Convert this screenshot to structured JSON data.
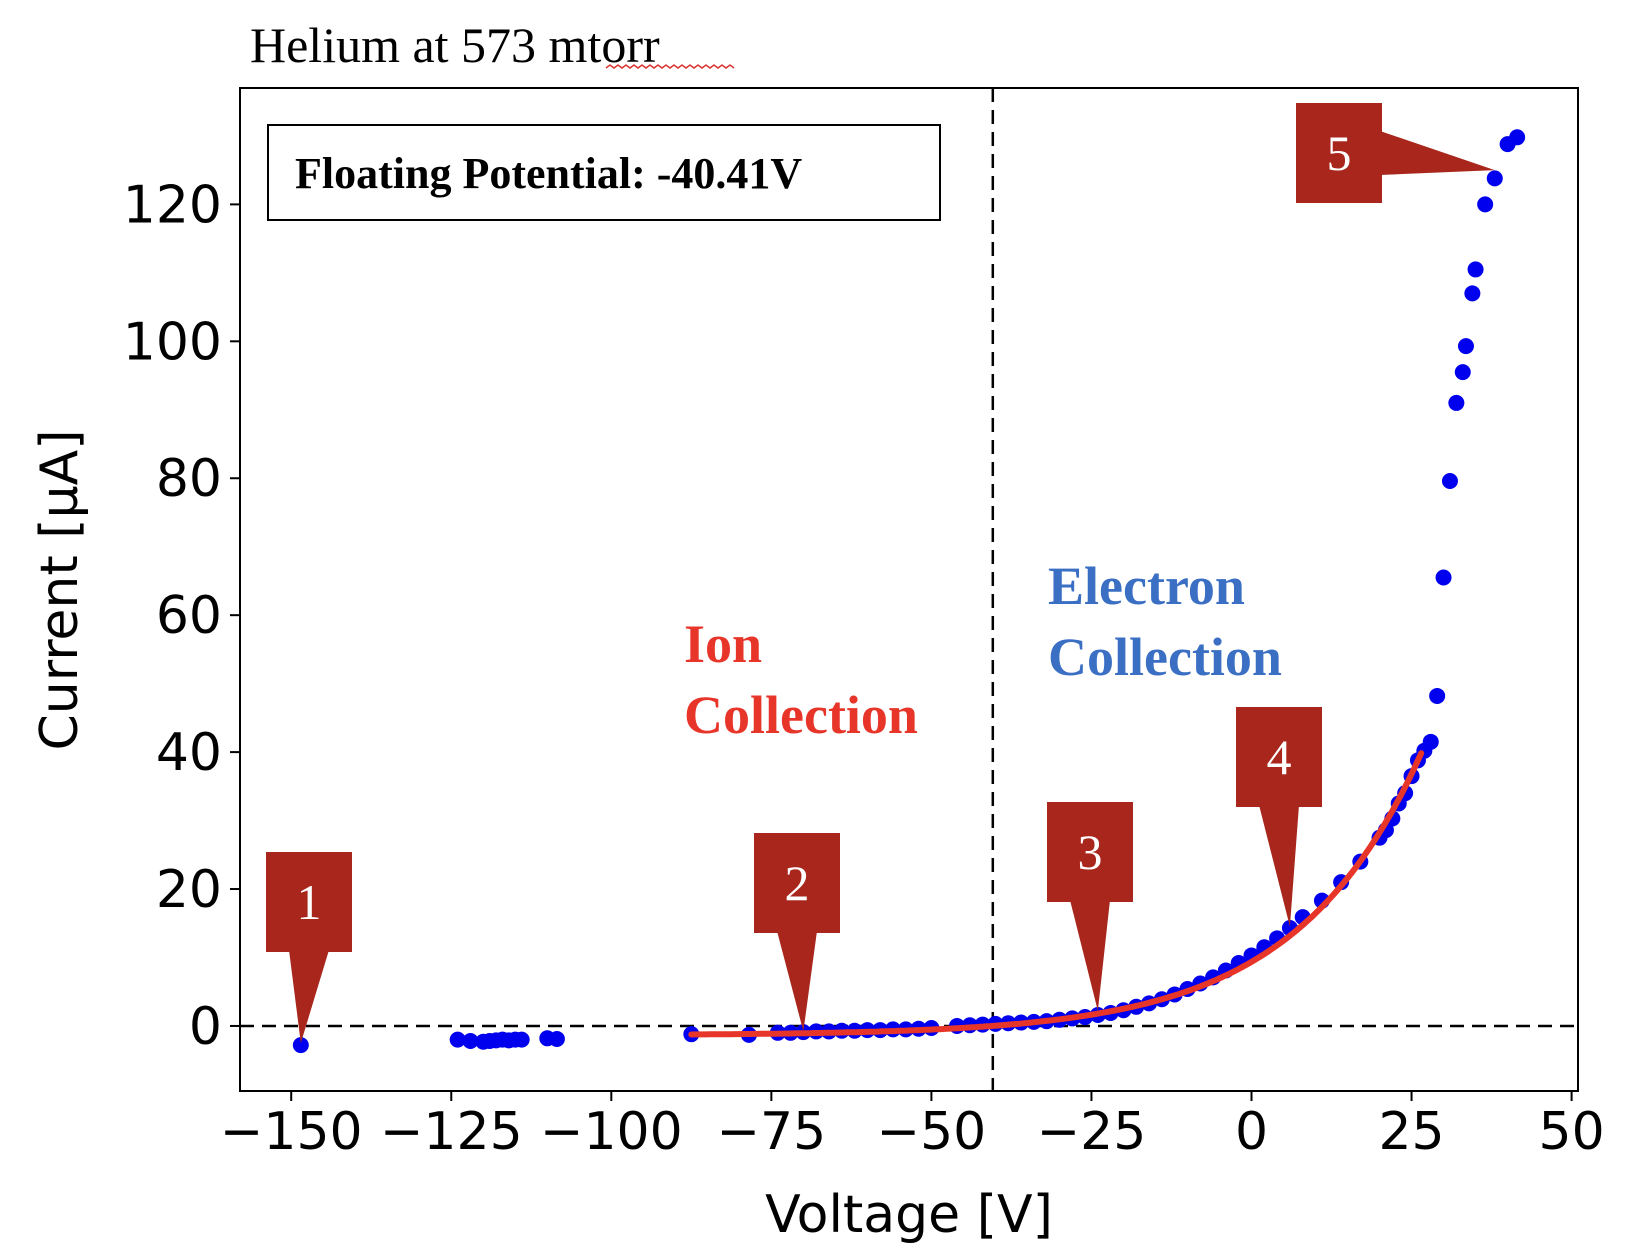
{
  "chart_data": {
    "type": "scatter",
    "title": "Helium at 573 mtorr",
    "xlabel": "Voltage [V]",
    "ylabel": "Current [μA]",
    "xlim": [
      -158,
      51
    ],
    "ylim": [
      -9.5,
      137
    ],
    "x_ticks": [
      -150,
      -125,
      -100,
      -75,
      -50,
      -25,
      0,
      25,
      50
    ],
    "x_tick_labels": [
      "−150",
      "−125",
      "−100",
      "−75",
      "−50",
      "−25",
      "0",
      "25",
      "50"
    ],
    "y_ticks": [
      0,
      20,
      40,
      60,
      80,
      100,
      120
    ],
    "y_tick_labels": [
      "0",
      "20",
      "40",
      "60",
      "80",
      "100",
      "120"
    ],
    "grid": false,
    "floating_potential": -40.41,
    "floating_potential_label": "Floating Potential: -40.41V",
    "vline_x": -40.41,
    "hline_y": 0,
    "region_labels": {
      "ion": [
        "Ion",
        "Collection"
      ],
      "electron": [
        "Electron",
        "Collection"
      ]
    },
    "callouts": [
      {
        "label": "1",
        "x": -148.5,
        "y": -2.5
      },
      {
        "label": "2",
        "x": -70,
        "y": -0.8
      },
      {
        "label": "3",
        "x": -24,
        "y": 2.2
      },
      {
        "label": "4",
        "x": 6,
        "y": 14.5
      },
      {
        "label": "5",
        "x": 38,
        "y": 125
      }
    ],
    "series": [
      {
        "color": "#0000ee",
        "points": [
          [
            -148.5,
            -2.8
          ],
          [
            -124,
            -2.0
          ],
          [
            -122,
            -2.2
          ],
          [
            -120,
            -2.3
          ],
          [
            -119,
            -2.2
          ],
          [
            -118,
            -2.1
          ],
          [
            -117,
            -2.0
          ],
          [
            -116,
            -2.1
          ],
          [
            -115,
            -2.0
          ],
          [
            -114,
            -2.0
          ],
          [
            -110,
            -1.8
          ],
          [
            -108.5,
            -1.9
          ],
          [
            -87.5,
            -1.2
          ],
          [
            -78.5,
            -1.3
          ],
          [
            -74,
            -1.0
          ],
          [
            -72,
            -1.0
          ],
          [
            -70,
            -0.9
          ],
          [
            -68,
            -0.8
          ],
          [
            -66,
            -0.8
          ],
          [
            -64,
            -0.7
          ],
          [
            -62,
            -0.7
          ],
          [
            -60,
            -0.6
          ],
          [
            -58,
            -0.6
          ],
          [
            -56,
            -0.5
          ],
          [
            -54,
            -0.5
          ],
          [
            -52,
            -0.4
          ],
          [
            -50,
            -0.3
          ],
          [
            -46,
            0.0
          ],
          [
            -44,
            0.1
          ],
          [
            -42,
            0.2
          ],
          [
            -40,
            0.3
          ],
          [
            -38,
            0.4
          ],
          [
            -36,
            0.5
          ],
          [
            -34,
            0.6
          ],
          [
            -32,
            0.7
          ],
          [
            -30,
            0.9
          ],
          [
            -28,
            1.1
          ],
          [
            -26,
            1.3
          ],
          [
            -24,
            1.6
          ],
          [
            -22,
            1.9
          ],
          [
            -20,
            2.3
          ],
          [
            -18,
            2.8
          ],
          [
            -16,
            3.3
          ],
          [
            -14,
            3.9
          ],
          [
            -12,
            4.6
          ],
          [
            -10,
            5.4
          ],
          [
            -8,
            6.2
          ],
          [
            -6,
            7.1
          ],
          [
            -4,
            8.1
          ],
          [
            -2,
            9.2
          ],
          [
            0,
            10.3
          ],
          [
            2,
            11.5
          ],
          [
            4,
            12.8
          ],
          [
            6,
            14.3
          ],
          [
            8,
            15.9
          ],
          [
            11,
            18.3
          ],
          [
            14,
            21.0
          ],
          [
            17,
            24.0
          ],
          [
            20,
            27.5
          ],
          [
            21,
            28.6
          ],
          [
            22,
            30.3
          ],
          [
            23,
            32.5
          ],
          [
            24,
            34.0
          ],
          [
            25,
            36.5
          ],
          [
            26,
            38.8
          ],
          [
            27,
            40.2
          ],
          [
            28,
            41.5
          ],
          [
            29,
            48.2
          ],
          [
            30,
            65.5
          ],
          [
            31,
            79.6
          ],
          [
            32,
            91.0
          ],
          [
            33,
            95.5
          ],
          [
            33.5,
            99.3
          ],
          [
            34.5,
            107.0
          ],
          [
            35,
            110.5
          ],
          [
            36.5,
            120.0
          ],
          [
            38,
            123.8
          ],
          [
            40,
            128.8
          ],
          [
            41.5,
            129.8
          ]
        ]
      }
    ],
    "fit": {
      "color": "#e8352a",
      "x_start": -87.5,
      "x_end": 26.5,
      "model": "exponential"
    }
  }
}
